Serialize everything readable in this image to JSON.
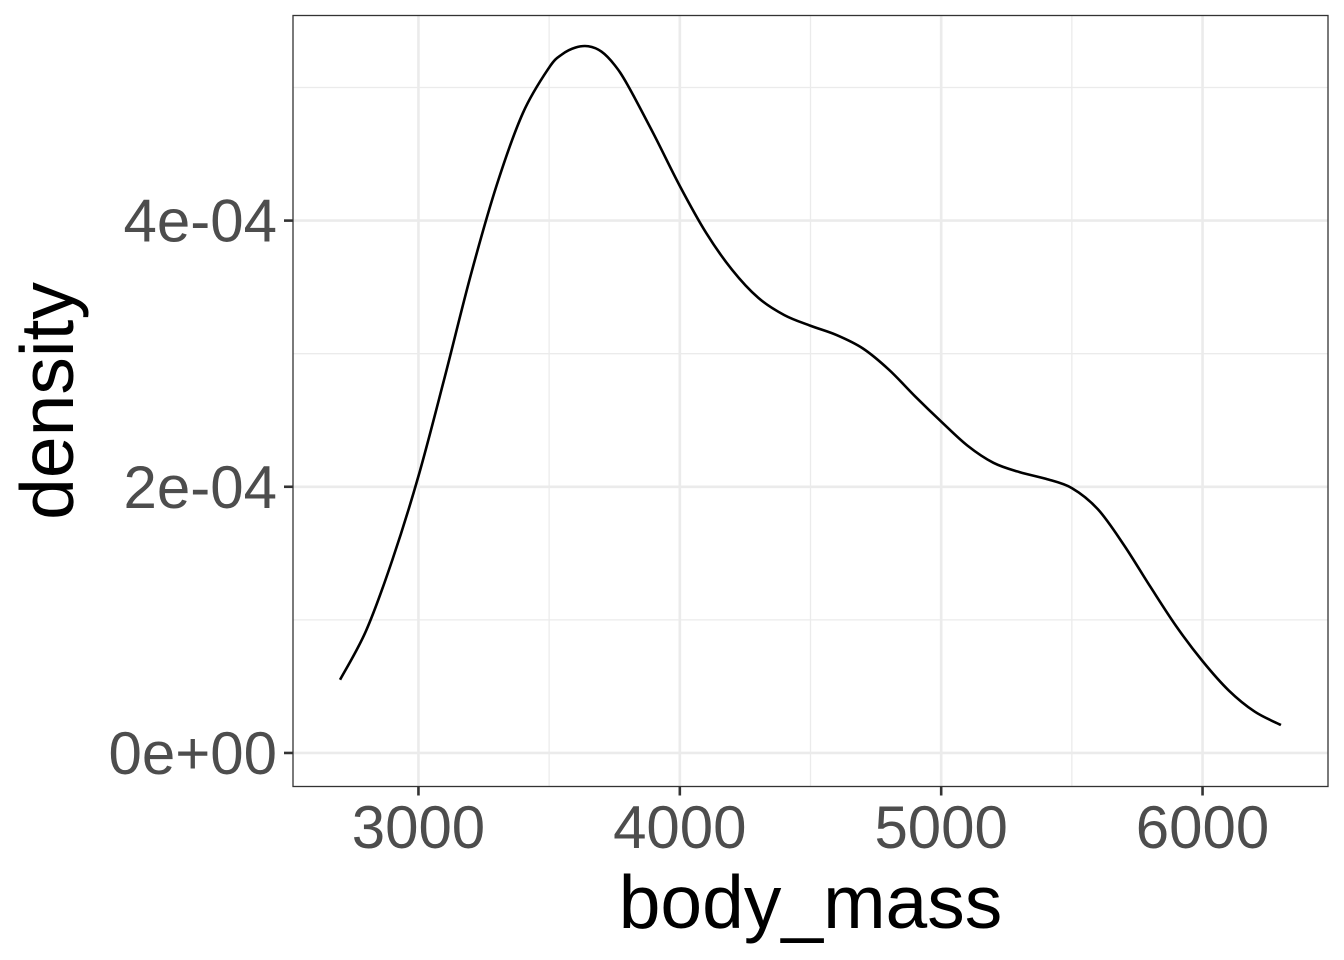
{
  "chart_data": {
    "type": "line",
    "title": "",
    "xlabel": "body_mass",
    "ylabel": "density",
    "xlim": [
      2520,
      6480
    ],
    "ylim": [
      -2.52e-05,
      0.0005541
    ],
    "x_ticks": [
      3000,
      4000,
      5000,
      6000
    ],
    "x_tick_labels": [
      "3000",
      "4000",
      "5000",
      "6000"
    ],
    "y_ticks": [
      0,
      0.0002,
      0.0004
    ],
    "y_tick_labels": [
      "0e+00",
      "2e-04",
      "4e-04"
    ],
    "x_minor_ticks": [
      3500,
      4500,
      5500
    ],
    "y_minor_ticks": [
      0.0001,
      0.0003,
      0.0005
    ],
    "grid": true,
    "legend": "none",
    "colors": {
      "line": "#000000",
      "grid": "#ebebeb",
      "panel_border": "#333333",
      "tick_text": "#4d4d4d"
    },
    "series": [
      {
        "x": [
          2700,
          2800,
          2900,
          3000,
          3100,
          3200,
          3300,
          3400,
          3500,
          3550,
          3600,
          3650,
          3700,
          3750,
          3800,
          3900,
          4000,
          4100,
          4200,
          4300,
          4400,
          4500,
          4600,
          4700,
          4800,
          4900,
          5000,
          5100,
          5200,
          5300,
          5400,
          5500,
          5600,
          5700,
          5800,
          5900,
          6000,
          6100,
          6200,
          6300
        ],
        "values": [
          5.5e-05,
          9.2e-05,
          0.000145,
          0.000208,
          0.000282,
          0.000359,
          0.000427,
          0.000481,
          0.000515,
          0.000525,
          0.00053,
          0.000531,
          0.000527,
          0.000517,
          0.000502,
          0.000465,
          0.000426,
          0.000391,
          0.000363,
          0.000342,
          0.000329,
          0.000321,
          0.000314,
          0.000304,
          0.000288,
          0.000268,
          0.000249,
          0.000231,
          0.000218,
          0.000211,
          0.000206,
          0.000199,
          0.000183,
          0.000156,
          0.000125,
          9.5e-05,
          6.9e-05,
          4.7e-05,
          3.1e-05,
          2.1e-05
        ]
      }
    ]
  }
}
